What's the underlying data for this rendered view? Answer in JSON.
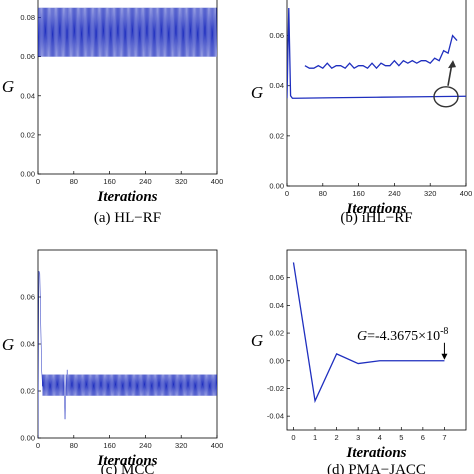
{
  "colors": {
    "line": "#1f2fbf",
    "axis": "#000000",
    "annotation": "#333333"
  },
  "chart_data": [
    {
      "id": "a",
      "type": "line",
      "caption": "(a) HL−RF",
      "xlabel": "Iterations",
      "ylabel": "G",
      "xlim": [
        0,
        400
      ],
      "ylim": [
        0,
        0.09
      ],
      "xticks": [
        0,
        80,
        160,
        240,
        320,
        400
      ],
      "yticks": [
        0.0,
        0.02,
        0.04,
        0.06,
        0.08
      ],
      "ytick_labels": [
        "0.00",
        "0.02",
        "0.04",
        "0.06",
        "0.08"
      ],
      "oscillation": {
        "x_start": 0,
        "x_end": 400,
        "low": 0.06,
        "high": 0.085
      }
    },
    {
      "id": "b",
      "type": "line",
      "caption": "(b) iHL−RF",
      "xlabel": "Iterations",
      "ylabel": "G",
      "xlim": [
        0,
        400
      ],
      "ylim": [
        0,
        0.075
      ],
      "xticks": [
        0,
        80,
        160,
        240,
        320,
        400
      ],
      "yticks": [
        0.0,
        0.02,
        0.04,
        0.06
      ],
      "ytick_labels": [
        "0.00",
        "0.02",
        "0.04",
        "0.06"
      ],
      "x": [
        0,
        4,
        8,
        12,
        20,
        100,
        200,
        300,
        400
      ],
      "y": [
        0.035,
        0.071,
        0.036,
        0.035,
        0.035,
        0.0352,
        0.0354,
        0.0356,
        0.0358
      ],
      "inset": {
        "x": [
          40,
          50,
          60,
          70,
          80,
          90,
          100,
          110,
          120,
          130,
          140,
          150,
          160,
          170,
          180,
          190,
          200,
          210,
          220,
          230,
          240,
          250,
          260,
          270,
          280,
          290,
          300,
          310,
          320,
          330,
          340,
          350,
          360,
          370,
          380
        ],
        "y": [
          0.048,
          0.047,
          0.047,
          0.048,
          0.047,
          0.049,
          0.047,
          0.048,
          0.048,
          0.047,
          0.049,
          0.047,
          0.048,
          0.048,
          0.047,
          0.049,
          0.047,
          0.049,
          0.048,
          0.048,
          0.05,
          0.048,
          0.05,
          0.049,
          0.05,
          0.049,
          0.05,
          0.05,
          0.049,
          0.051,
          0.05,
          0.054,
          0.053,
          0.06,
          0.058
        ]
      }
    },
    {
      "id": "c",
      "type": "line",
      "caption": "(c) MCC",
      "xlabel": "Iterations",
      "ylabel": "G",
      "xlim": [
        0,
        400
      ],
      "ylim": [
        0,
        0.08
      ],
      "xticks": [
        0,
        80,
        160,
        240,
        320,
        400
      ],
      "yticks": [
        0.0,
        0.02,
        0.04,
        0.06
      ],
      "ytick_labels": [
        "0.00",
        "0.02",
        "0.04",
        "0.06"
      ],
      "x": [
        0,
        2,
        4,
        6,
        8,
        10
      ],
      "y": [
        0.0,
        0.071,
        0.07,
        0.05,
        0.03,
        0.022
      ],
      "oscillation": {
        "x_start": 10,
        "x_end": 400,
        "low": 0.018,
        "high": 0.027
      },
      "spikes": [
        {
          "x": 60,
          "y": 0.008
        },
        {
          "x": 65,
          "y": 0.029
        }
      ]
    },
    {
      "id": "d",
      "type": "line",
      "caption": "(d) PMA−JACC",
      "xlabel": "Iterations",
      "ylabel": "G",
      "xlim": [
        -0.3,
        8
      ],
      "ylim": [
        -0.05,
        0.08
      ],
      "xticks": [
        0,
        1,
        2,
        3,
        4,
        5,
        6,
        7
      ],
      "yticks": [
        -0.04,
        -0.02,
        0.0,
        0.02,
        0.04,
        0.06
      ],
      "ytick_labels": [
        "-0.04",
        "-0.02",
        "0.00",
        "0.02",
        "0.04",
        "0.06"
      ],
      "x": [
        0,
        1,
        2,
        3,
        4,
        5,
        6,
        7
      ],
      "y": [
        0.071,
        -0.029,
        0.005,
        -0.002,
        0.0,
        0.0,
        0.0,
        0.0
      ],
      "annotation": {
        "prefix": "G",
        "text": "=-4.3675×10",
        "exponent": "-8",
        "point_x": 7,
        "point_y": 0.0
      }
    }
  ]
}
